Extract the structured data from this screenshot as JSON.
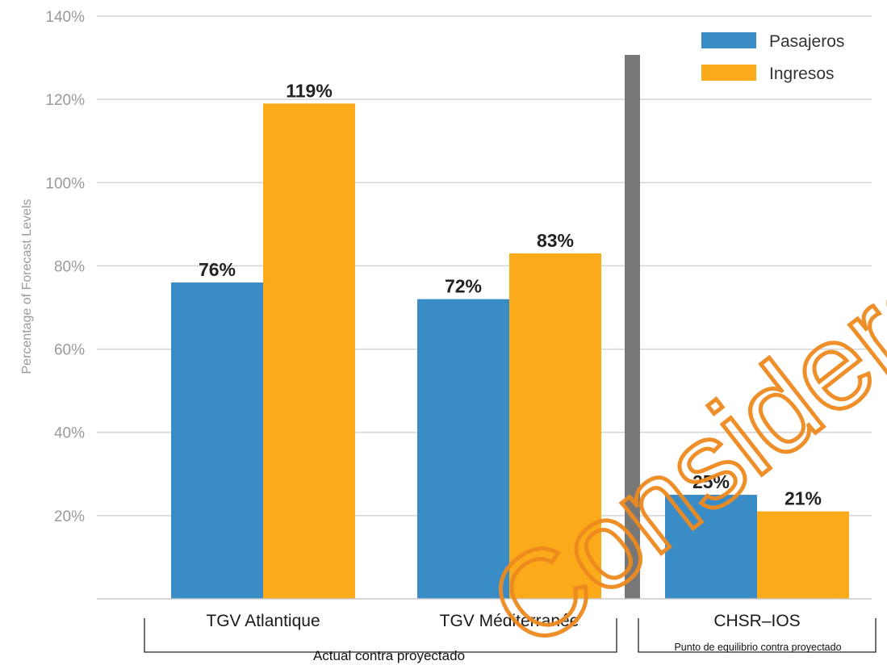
{
  "chart_data": {
    "type": "bar",
    "ylabel": "Percentage of Forecast Levels",
    "ylim": [
      0,
      140
    ],
    "yticks": [
      "20%",
      "40%",
      "60%",
      "80%",
      "100%",
      "120%",
      "140%"
    ],
    "ytick_values": [
      20,
      40,
      60,
      80,
      100,
      120,
      140
    ],
    "categories": [
      "TGV Atlantique",
      "TGV Méditerranée",
      "CHSR–IOS"
    ],
    "series": [
      {
        "name": "Pasajeros",
        "values": [
          76,
          72,
          25
        ],
        "labels": [
          "76%",
          "72%",
          "25%"
        ],
        "color": "#3a8cc6"
      },
      {
        "name": "Ingresos",
        "values": [
          119,
          83,
          21
        ],
        "labels": [
          "119%",
          "83%",
          "21%"
        ],
        "color": "#fbab19"
      }
    ],
    "group_labels": [
      "Actual contra proyectado",
      "Punto de equilibrio contra proyectado"
    ],
    "legend_position": "top-right",
    "grid": true,
    "divider_color": "#777777"
  },
  "watermark": "Consideration"
}
